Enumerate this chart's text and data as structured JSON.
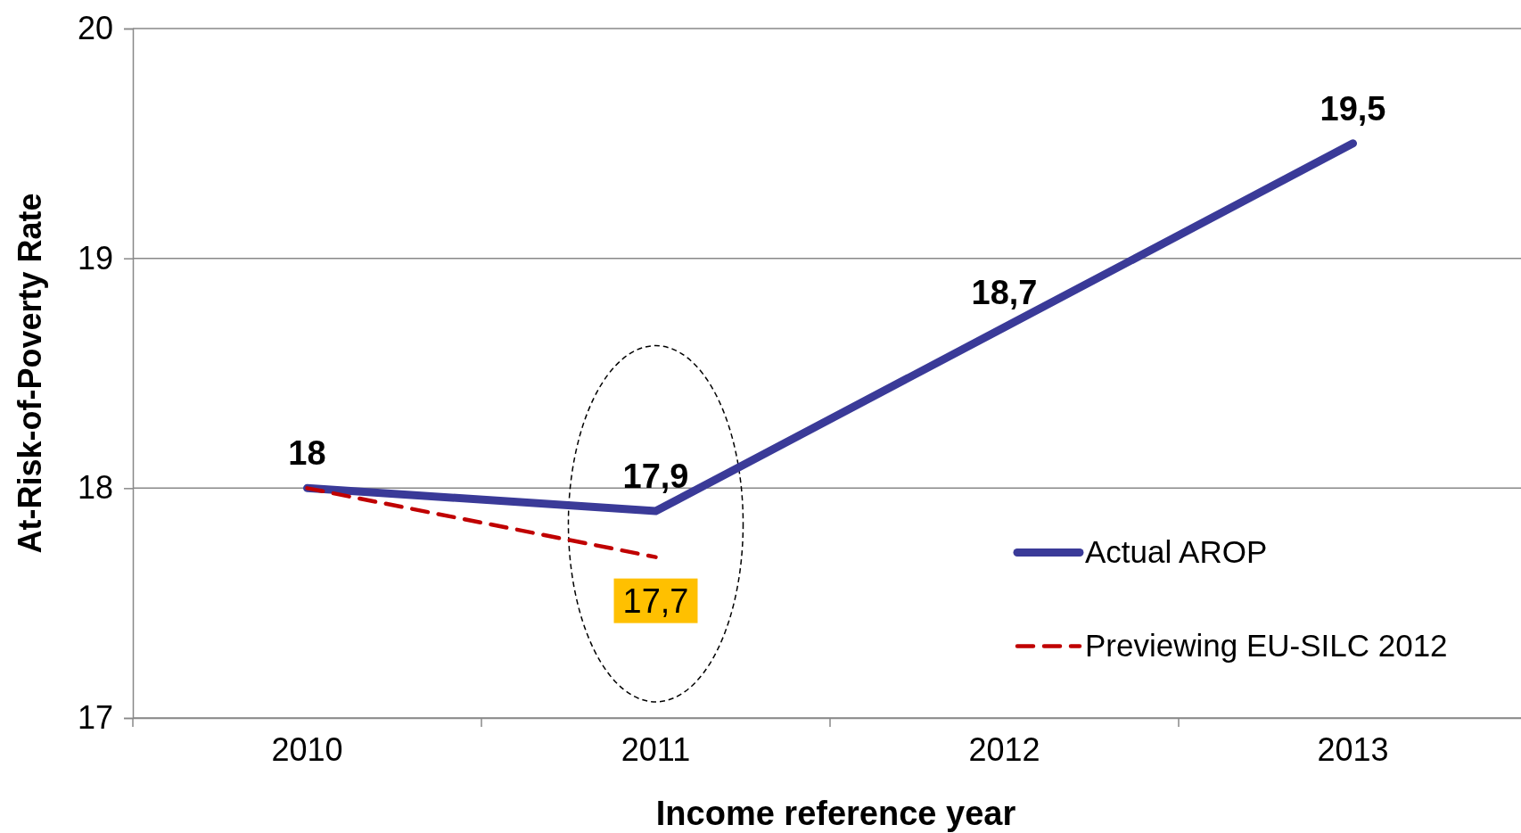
{
  "chart_data": {
    "type": "line",
    "xlabel": "Income reference year",
    "ylabel": "At-Risk-of-Poverty Rate",
    "categories": [
      "2010",
      "2011",
      "2012",
      "2013"
    ],
    "series": [
      {
        "name": "Actual AROP",
        "color": "#3a3a98",
        "values": [
          18,
          17.9,
          18.7,
          19.5
        ],
        "value_labels": [
          "18",
          "17,9",
          "18,7",
          "19,5"
        ],
        "line_style": "solid"
      },
      {
        "name": "Previewing EU-SILC 2012",
        "color": "#c00000",
        "values": [
          18,
          17.7,
          null,
          null
        ],
        "value_labels": [
          null,
          "17,7",
          null,
          null
        ],
        "line_style": "dashed"
      }
    ],
    "ylim": [
      17,
      20
    ],
    "yticks": [
      17,
      18,
      19,
      20
    ],
    "grid": "y",
    "legend": "right",
    "marker": "none"
  }
}
